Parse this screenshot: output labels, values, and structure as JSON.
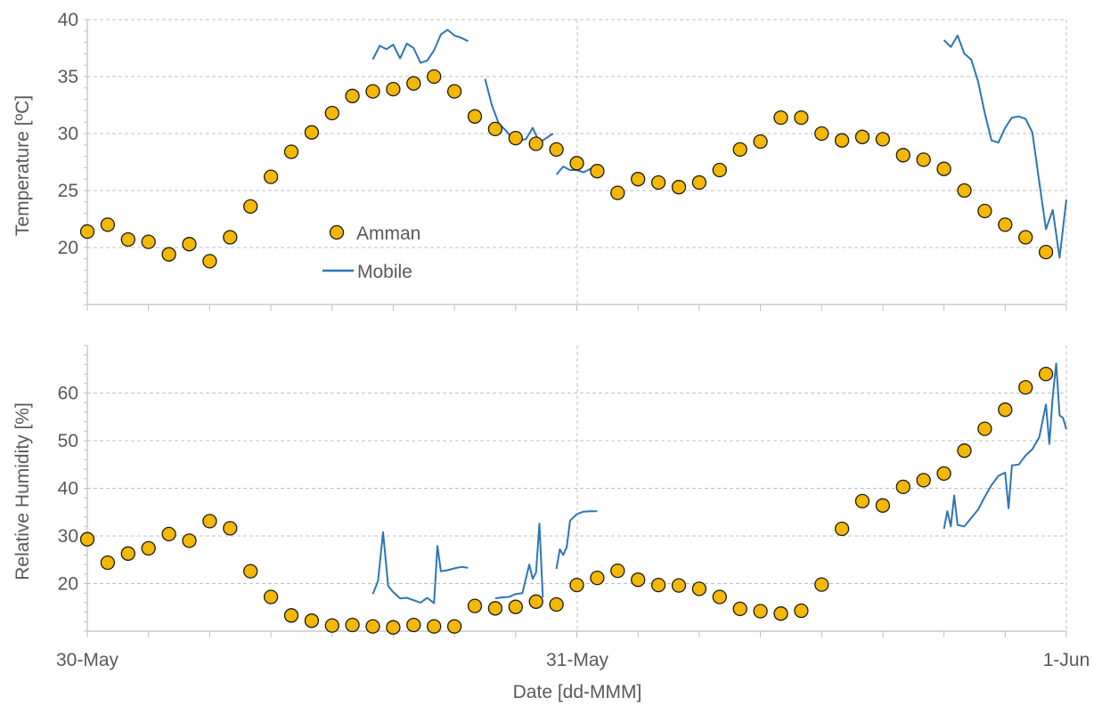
{
  "colors": {
    "amman": "#F5B800",
    "amman_edge": "#1a1a1a",
    "mobile": "#2E75B6",
    "grid": "#BFBFBF",
    "axis": "#BFBFBF",
    "text": "#595959"
  },
  "chart_data": [
    {
      "type": "scatter",
      "ylabel": "Temperature [ºC]",
      "ylim": [
        15,
        40
      ],
      "yticks": [
        20,
        25,
        30,
        35,
        40
      ],
      "xlim": [
        "30-May 00:00",
        "01-Jun 00:00"
      ],
      "grid": true,
      "legend": {
        "placement": "center-left",
        "entries": [
          "Amman",
          "Mobile"
        ]
      },
      "series": [
        {
          "name": "Amman",
          "kind": "markers",
          "x": [
            "30-May 00:00",
            "30-May 01:00",
            "30-May 02:00",
            "30-May 03:00",
            "30-May 04:00",
            "30-May 05:00",
            "30-May 06:00",
            "30-May 07:00",
            "30-May 08:00",
            "30-May 09:00",
            "30-May 10:00",
            "30-May 11:00",
            "30-May 12:00",
            "30-May 13:00",
            "30-May 14:00",
            "30-May 15:00",
            "30-May 16:00",
            "30-May 17:00",
            "30-May 18:00",
            "30-May 19:00",
            "30-May 20:00",
            "30-May 21:00",
            "30-May 22:00",
            "30-May 23:00",
            "31-May 00:00",
            "31-May 01:00",
            "31-May 02:00",
            "31-May 03:00",
            "31-May 04:00",
            "31-May 05:00",
            "31-May 06:00",
            "31-May 07:00",
            "31-May 08:00",
            "31-May 09:00",
            "31-May 10:00",
            "31-May 11:00",
            "31-May 12:00",
            "31-May 13:00",
            "31-May 14:00",
            "31-May 15:00",
            "31-May 16:00",
            "31-May 17:00",
            "31-May 18:00",
            "31-May 19:00",
            "31-May 20:00",
            "31-May 21:00",
            "31-May 22:00",
            "31-May 23:00"
          ],
          "values": [
            21.4,
            22.0,
            20.7,
            20.5,
            19.4,
            20.3,
            18.8,
            20.9,
            23.6,
            26.2,
            28.4,
            30.1,
            31.8,
            33.3,
            33.7,
            33.9,
            34.4,
            35.0,
            33.7,
            31.5,
            30.4,
            29.6,
            29.1,
            28.6,
            27.4,
            26.7,
            24.8,
            26.0,
            25.7,
            25.3,
            25.7,
            26.8,
            28.6,
            29.3,
            31.4,
            31.4,
            30.0,
            29.4,
            29.7,
            29.5,
            28.1,
            27.7,
            26.9,
            25.0,
            23.2,
            22.0,
            20.9,
            19.6
          ]
        },
        {
          "name": "Mobile",
          "kind": "line",
          "segments": [
            {
              "x": [
                "30-May 14:00",
                "30-May 14:20",
                "30-May 14:40",
                "30-May 15:00",
                "30-May 15:20",
                "30-May 15:40",
                "30-May 16:00",
                "30-May 16:20",
                "30-May 16:40",
                "30-May 17:00",
                "30-May 17:20",
                "30-May 17:40",
                "30-May 18:00",
                "30-May 18:20",
                "30-May 18:40"
              ],
              "values": [
                36.5,
                37.7,
                37.4,
                37.8,
                36.6,
                37.9,
                37.5,
                36.2,
                36.4,
                37.3,
                38.7,
                39.1,
                38.6,
                38.4,
                38.1
              ]
            },
            {
              "x": [
                "30-May 19:30",
                "30-May 19:50",
                "30-May 20:10",
                "30-May 20:30",
                "30-May 20:50",
                "30-May 21:10",
                "30-May 21:30",
                "30-May 21:50",
                "30-May 22:10",
                "30-May 22:30",
                "30-May 22:50"
              ],
              "values": [
                34.8,
                32.5,
                30.9,
                30.3,
                29.6,
                29.4,
                29.5,
                30.5,
                29.2,
                29.6,
                30.0
              ]
            },
            {
              "x": [
                "30-May 23:00",
                "30-May 23:20",
                "30-May 23:40",
                "31-May 00:00",
                "31-May 00:20",
                "31-May 00:40",
                "31-May 01:00"
              ],
              "values": [
                26.4,
                27.1,
                26.8,
                26.8,
                26.6,
                26.9,
                26.8
              ]
            },
            {
              "x": [
                "31-May 18:00",
                "31-May 18:20",
                "31-May 18:40",
                "31-May 19:00",
                "31-May 19:20",
                "31-May 19:40",
                "31-May 20:00",
                "31-May 20:20",
                "31-May 20:40",
                "31-May 21:00",
                "31-May 21:20",
                "31-May 21:40",
                "31-May 22:00",
                "31-May 22:20",
                "31-May 22:40",
                "31-May 23:00",
                "31-May 23:20",
                "31-May 23:40",
                "01-Jun 00:00"
              ],
              "values": [
                38.2,
                37.6,
                38.6,
                37.0,
                36.5,
                34.6,
                31.8,
                29.4,
                29.2,
                30.5,
                31.4,
                31.5,
                31.3,
                30.1,
                25.8,
                21.6,
                23.3,
                19.1,
                24.2
              ]
            }
          ]
        }
      ]
    },
    {
      "type": "scatter",
      "ylabel": "Relative Humidity [%]",
      "xlabel": "Date [dd-MMM]",
      "ylim": [
        10,
        70
      ],
      "yticks": [
        20,
        30,
        40,
        50,
        60
      ],
      "xticks": [
        "30-May",
        "31-May",
        "1-Jun"
      ],
      "xlim": [
        "30-May 00:00",
        "01-Jun 00:00"
      ],
      "grid": true,
      "series": [
        {
          "name": "Amman",
          "kind": "markers",
          "x": [
            "30-May 00:00",
            "30-May 01:00",
            "30-May 02:00",
            "30-May 03:00",
            "30-May 04:00",
            "30-May 05:00",
            "30-May 06:00",
            "30-May 07:00",
            "30-May 08:00",
            "30-May 09:00",
            "30-May 10:00",
            "30-May 11:00",
            "30-May 12:00",
            "30-May 13:00",
            "30-May 14:00",
            "30-May 15:00",
            "30-May 16:00",
            "30-May 17:00",
            "30-May 18:00",
            "30-May 19:00",
            "30-May 20:00",
            "30-May 21:00",
            "30-May 22:00",
            "30-May 23:00",
            "31-May 00:00",
            "31-May 01:00",
            "31-May 02:00",
            "31-May 03:00",
            "31-May 04:00",
            "31-May 05:00",
            "31-May 06:00",
            "31-May 07:00",
            "31-May 08:00",
            "31-May 09:00",
            "31-May 10:00",
            "31-May 11:00",
            "31-May 12:00",
            "31-May 13:00",
            "31-May 14:00",
            "31-May 15:00",
            "31-May 16:00",
            "31-May 17:00",
            "31-May 18:00",
            "31-May 19:00",
            "31-May 20:00",
            "31-May 21:00",
            "31-May 22:00",
            "31-May 23:00"
          ],
          "values": [
            29.3,
            24.4,
            26.3,
            27.4,
            30.4,
            29.0,
            33.1,
            31.6,
            22.6,
            17.2,
            13.3,
            12.2,
            11.2,
            11.3,
            11.0,
            10.8,
            11.3,
            11.0,
            11.0,
            15.3,
            14.8,
            15.1,
            16.2,
            15.6,
            19.7,
            21.2,
            22.7,
            20.8,
            19.7,
            19.6,
            18.9,
            17.2,
            14.7,
            14.2,
            13.7,
            14.3,
            19.8,
            31.5,
            37.3,
            36.4,
            40.3,
            41.7,
            43.1,
            47.9,
            52.5,
            56.5,
            61.2,
            64.0
          ]
        },
        {
          "name": "Mobile",
          "kind": "line",
          "segments": [
            {
              "x": [
                "30-May 14:00",
                "30-May 14:15",
                "30-May 14:30",
                "30-May 14:45",
                "30-May 15:00",
                "30-May 15:20",
                "30-May 15:40",
                "30-May 16:00",
                "30-May 16:20",
                "30-May 16:40",
                "30-May 17:00",
                "30-May 17:10",
                "30-May 17:20",
                "30-May 17:40",
                "30-May 18:00",
                "30-May 18:20",
                "30-May 18:40"
              ],
              "values": [
                17.8,
                20.5,
                30.8,
                19.5,
                18.2,
                16.9,
                17.0,
                16.5,
                16.0,
                17.0,
                15.9,
                27.9,
                22.6,
                22.8,
                23.2,
                23.5,
                23.3
              ]
            },
            {
              "x": [
                "30-May 20:00",
                "30-May 20:20",
                "30-May 20:40",
                "30-May 21:00",
                "30-May 21:20",
                "30-May 21:40",
                "30-May 21:50",
                "30-May 22:00",
                "30-May 22:10",
                "30-May 22:20"
              ],
              "values": [
                16.9,
                17.1,
                17.2,
                17.8,
                18.0,
                24.0,
                21.0,
                22.3,
                32.6,
                17.1
              ]
            },
            {
              "x": [
                "30-May 23:00",
                "30-May 23:10",
                "30-May 23:20",
                "30-May 23:30",
                "30-May 23:40",
                "31-May 00:00",
                "31-May 00:20",
                "31-May 00:40",
                "31-May 01:00"
              ],
              "values": [
                23.1,
                27.2,
                26.0,
                27.6,
                33.2,
                34.6,
                35.1,
                35.2,
                35.2
              ]
            },
            {
              "x": [
                "31-May 18:00",
                "31-May 18:10",
                "31-May 18:20",
                "31-May 18:30",
                "31-May 18:40",
                "31-May 19:00",
                "31-May 19:20",
                "31-May 19:40",
                "31-May 20:00",
                "31-May 20:20",
                "31-May 20:40",
                "31-May 21:00",
                "31-May 21:10",
                "31-May 21:20",
                "31-May 21:40",
                "31-May 22:00",
                "31-May 22:20",
                "31-May 22:40",
                "31-May 23:00",
                "31-May 23:10",
                "31-May 23:20",
                "31-May 23:30",
                "31-May 23:40",
                "31-May 23:50",
                "01-Jun 00:00"
              ],
              "values": [
                31.5,
                35.2,
                32.0,
                38.5,
                32.3,
                32.0,
                33.8,
                35.5,
                38.2,
                40.7,
                42.6,
                43.3,
                35.8,
                44.8,
                45.0,
                46.9,
                48.2,
                50.7,
                57.6,
                49.3,
                59.3,
                66.2,
                55.3,
                54.8,
                52.4
              ]
            }
          ]
        }
      ]
    }
  ]
}
